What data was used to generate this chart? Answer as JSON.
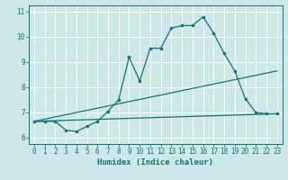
{
  "xlabel": "Humidex (Indice chaleur)",
  "bg_color": "#cce8e8",
  "grid_color": "#ffffff",
  "line_color": "#1a7070",
  "xlim": [
    -0.5,
    23.5
  ],
  "ylim": [
    5.75,
    11.25
  ],
  "xticks": [
    0,
    1,
    2,
    3,
    4,
    5,
    6,
    7,
    8,
    9,
    10,
    11,
    12,
    13,
    14,
    15,
    16,
    17,
    18,
    19,
    20,
    21,
    22,
    23
  ],
  "yticks": [
    6,
    7,
    8,
    9,
    10,
    11
  ],
  "line1_x": [
    0,
    1,
    2,
    3,
    4,
    5,
    6,
    7,
    8,
    9,
    10,
    11,
    12,
    13,
    14,
    15,
    16,
    17,
    18,
    19,
    20,
    21,
    22,
    23
  ],
  "line1_y": [
    6.65,
    6.65,
    6.65,
    6.3,
    6.25,
    6.45,
    6.65,
    7.05,
    7.5,
    9.2,
    8.25,
    9.55,
    9.55,
    10.35,
    10.45,
    10.45,
    10.8,
    10.15,
    9.35,
    8.65,
    7.55,
    7.0,
    6.95,
    6.95
  ],
  "line2_x": [
    0,
    23
  ],
  "line2_y": [
    6.65,
    8.65
  ],
  "line3_x": [
    0,
    23
  ],
  "line3_y": [
    6.65,
    6.95
  ]
}
